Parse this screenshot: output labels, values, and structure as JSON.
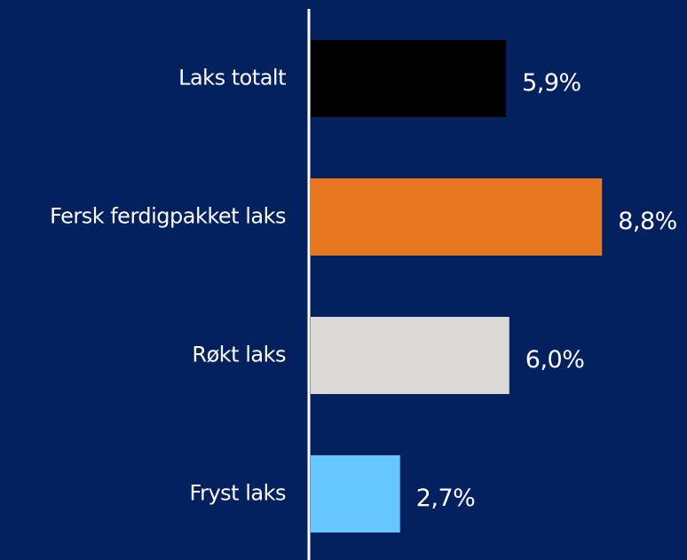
{
  "chart_data": {
    "type": "bar",
    "orientation": "horizontal",
    "categories": [
      "Laks totalt",
      "Fersk ferdigpakket laks",
      "Røkt laks",
      "Fryst laks"
    ],
    "values": [
      5.9,
      8.8,
      6.0,
      2.7
    ],
    "value_labels": [
      "5,9%",
      "8,8%",
      "6,0%",
      "2,7%"
    ],
    "colors": [
      "#000000",
      "#e87722",
      "#dcdad6",
      "#66c6ff"
    ]
  }
}
